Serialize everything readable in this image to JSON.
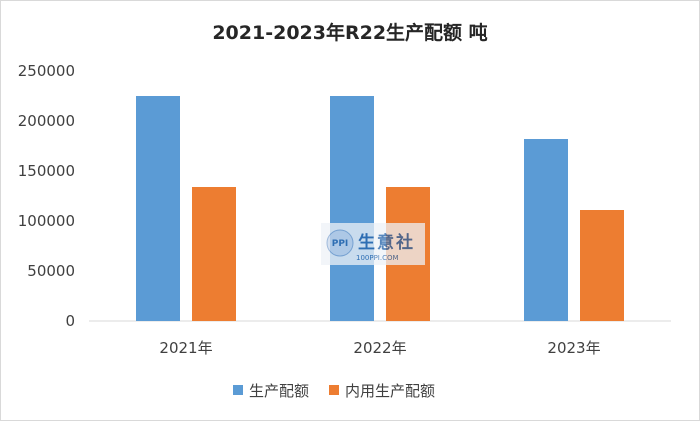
{
  "chart_data": {
    "type": "bar",
    "title": "2021-2023年R22生产配额  吨",
    "categories": [
      "2021年",
      "2022年",
      "2023年"
    ],
    "series": [
      {
        "name": "生产配额",
        "color": "#5b9bd5",
        "values": [
          225000,
          225000,
          182000
        ]
      },
      {
        "name": "内用生产配额",
        "color": "#ed7d31",
        "values": [
          134000,
          134000,
          111000
        ]
      }
    ],
    "ylim": [
      0,
      250000
    ],
    "yticks": [
      "0",
      "50000",
      "100000",
      "150000",
      "200000",
      "250000"
    ],
    "grid": false,
    "legend": "bottom"
  },
  "watermark": {
    "name": "生意社",
    "site": "100PPI.COM",
    "logo": "PPI"
  }
}
